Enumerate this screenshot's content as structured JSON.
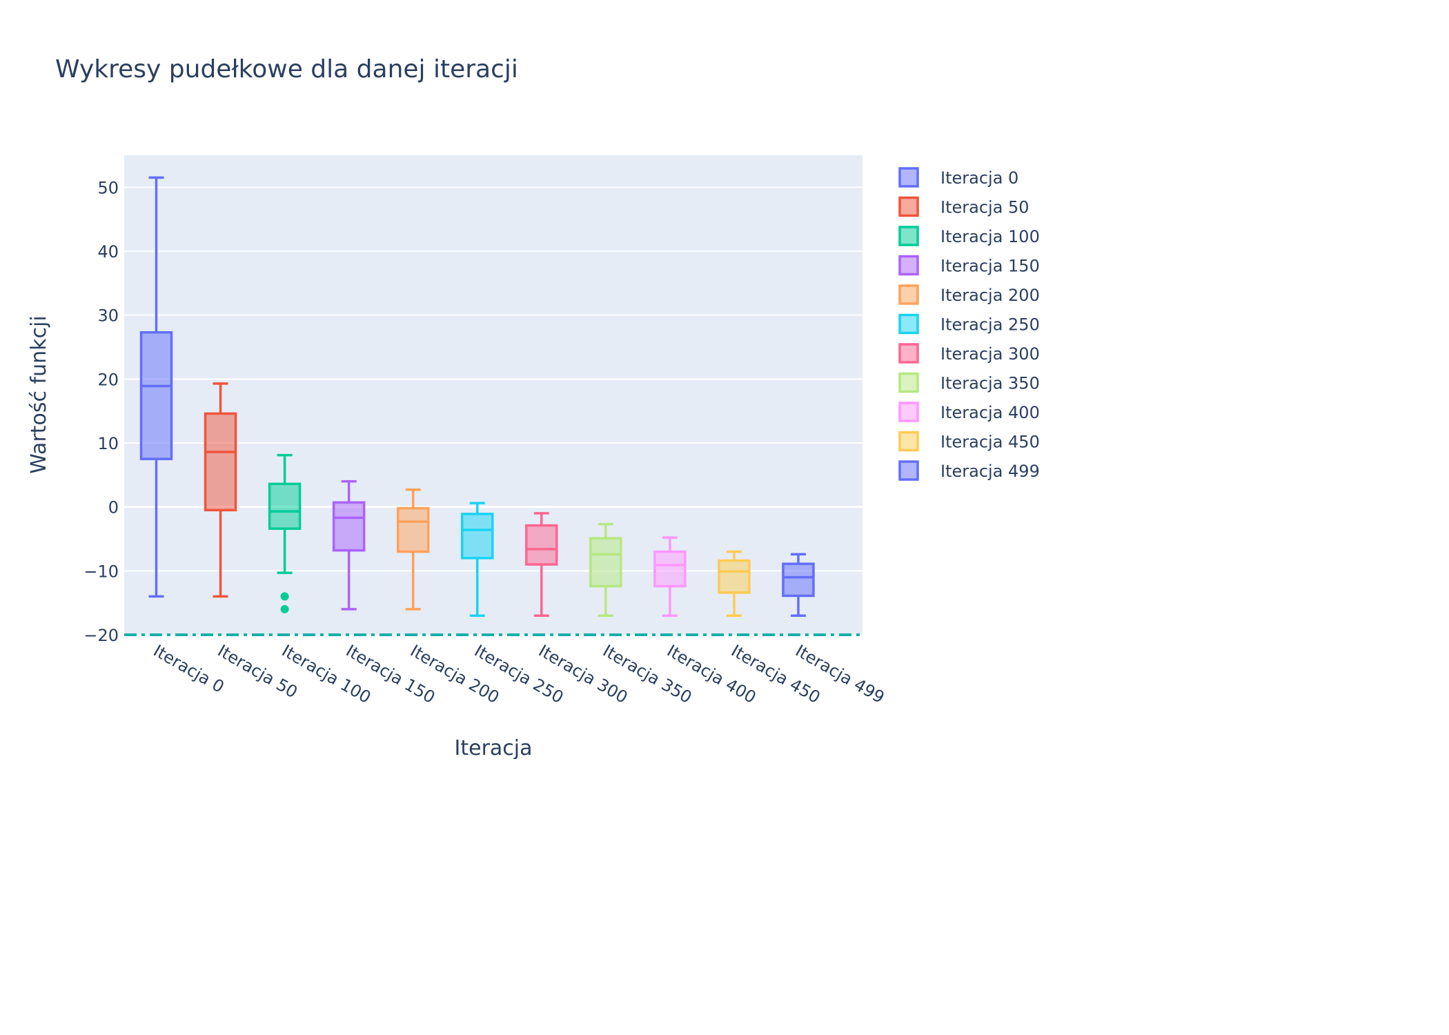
{
  "chart_data": {
    "type": "box",
    "title": "Wykresy pudełkowe dla danej iteracji",
    "xlabel": "Iteracja",
    "ylabel": "Wartość funkcji",
    "ylim": [
      -20,
      55
    ],
    "yticks": [
      -20,
      -10,
      0,
      10,
      20,
      30,
      40,
      50
    ],
    "ytick_labels": [
      "−20",
      "−10",
      "0",
      "10",
      "20",
      "30",
      "40",
      "50"
    ],
    "grid": true,
    "legend_position": "right",
    "reference_line": {
      "y": -20,
      "style": "dash-dot",
      "color": "#17b0a8"
    },
    "series": [
      {
        "name": "Iteracja 0",
        "color": "#636efa",
        "min": -14,
        "q1": 7.5,
        "median": 18.9,
        "q3": 27.3,
        "max": 51.5,
        "outliers": []
      },
      {
        "name": "Iteracja 50",
        "color": "#ef553b",
        "min": -14,
        "q1": -0.5,
        "median": 8.6,
        "q3": 14.6,
        "max": 19.3,
        "outliers": []
      },
      {
        "name": "Iteracja 100",
        "color": "#00cc96",
        "min": -10.3,
        "q1": -3.4,
        "median": -0.7,
        "q3": 3.6,
        "max": 8.1,
        "outliers": [
          -14,
          -16
        ]
      },
      {
        "name": "Iteracja 150",
        "color": "#ab63fa",
        "min": -16,
        "q1": -6.8,
        "median": -1.7,
        "q3": 0.7,
        "max": 4.0,
        "outliers": []
      },
      {
        "name": "Iteracja 200",
        "color": "#ffa15a",
        "min": -16,
        "q1": -7.0,
        "median": -2.3,
        "q3": -0.2,
        "max": 2.7,
        "outliers": []
      },
      {
        "name": "Iteracja 250",
        "color": "#19d3f3",
        "min": -17,
        "q1": -8.0,
        "median": -3.6,
        "q3": -1.1,
        "max": 0.6,
        "outliers": []
      },
      {
        "name": "Iteracja 300",
        "color": "#ff6692",
        "min": -17,
        "q1": -9.0,
        "median": -6.6,
        "q3": -2.9,
        "max": -1.0,
        "outliers": []
      },
      {
        "name": "Iteracja 350",
        "color": "#b6e880",
        "min": -17,
        "q1": -12.4,
        "median": -7.4,
        "q3": -4.9,
        "max": -2.7,
        "outliers": []
      },
      {
        "name": "Iteracja 400",
        "color": "#ff97ff",
        "min": -17,
        "q1": -12.4,
        "median": -9.1,
        "q3": -7.0,
        "max": -4.8,
        "outliers": []
      },
      {
        "name": "Iteracja 450",
        "color": "#fecb52",
        "min": -17,
        "q1": -13.4,
        "median": -10.1,
        "q3": -8.4,
        "max": -7.0,
        "outliers": []
      },
      {
        "name": "Iteracja 499",
        "color": "#636efa",
        "min": -17,
        "q1": -13.9,
        "median": -11.0,
        "q3": -8.9,
        "max": -7.4,
        "outliers": []
      }
    ]
  }
}
